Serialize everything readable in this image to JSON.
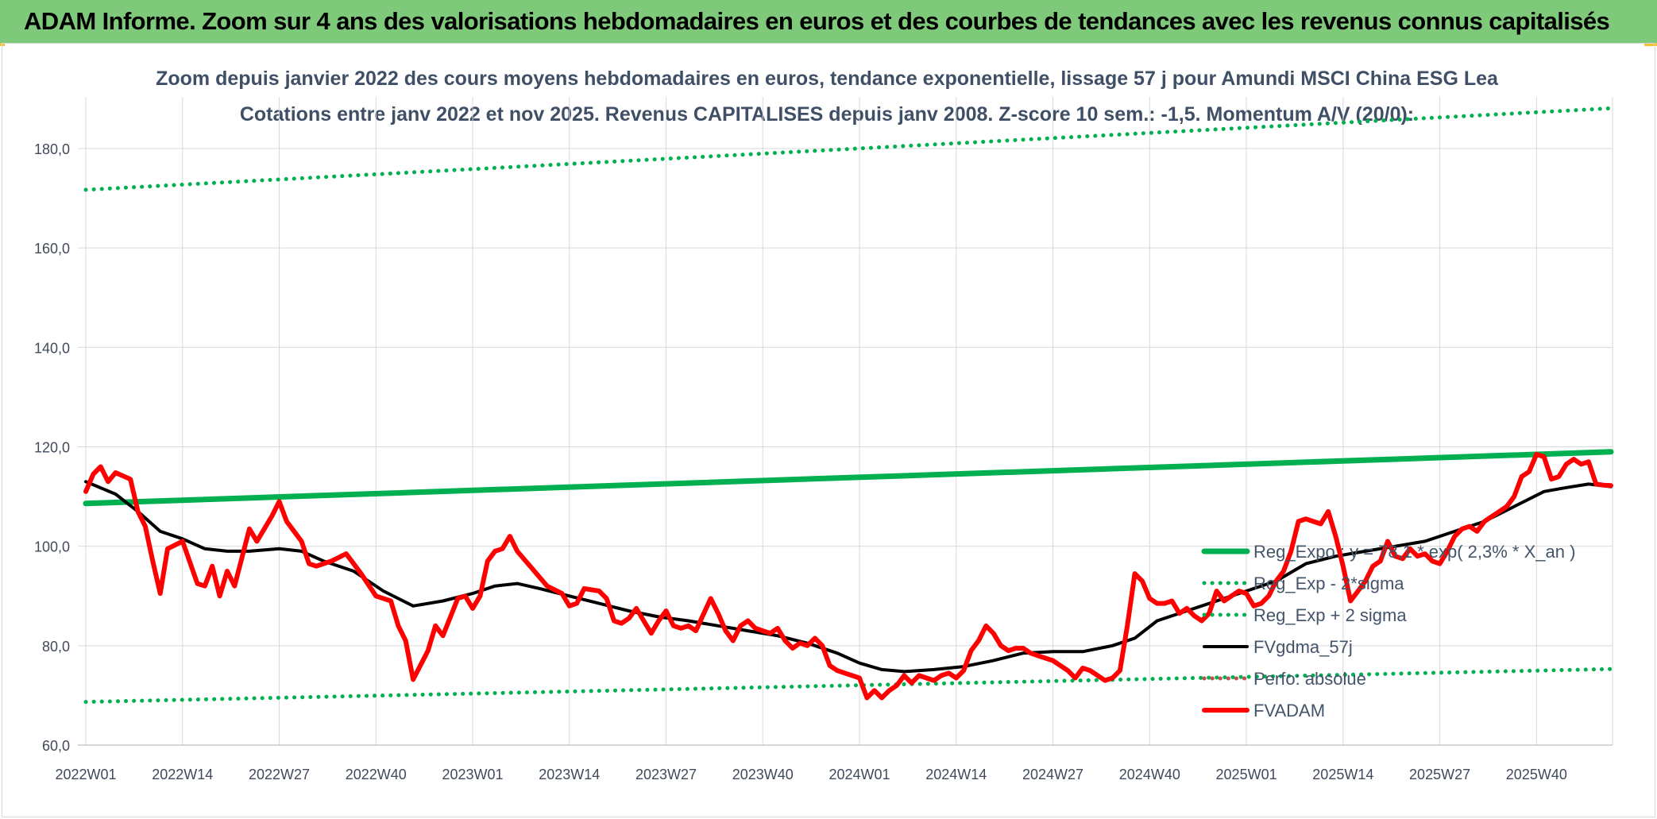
{
  "banner": {
    "title": "ADAM Informe. Zoom sur 4 ans des valorisations hebdomadaires en euros et des courbes de tendances avec les revenus connus capitalisés"
  },
  "colors": {
    "banner": "#7ec97a",
    "reg_expo": "#00b050",
    "fvgdma": "#000000",
    "fvadam": "#ff0000",
    "perfo": "#c0504d",
    "grid": "#d9d9d9"
  },
  "chart_data": {
    "type": "line",
    "title_line1": "Zoom depuis janvier 2022 des cours moyens hebdomadaires en euros, tendance exponentielle, lissage 57 j pour Amundi MSCI China ESG Lea",
    "title_line2": "Cotations entre janv 2022 et nov 2025. Revenus CAPITALISES depuis janv 2008. Z-score 10 sem.: -1,5. Momentum A/V (20/0):",
    "ylim": [
      60,
      190
    ],
    "y_ticks": [
      "60,0",
      "80,0",
      "100,0",
      "120,0",
      "140,0",
      "160,0",
      "180,0"
    ],
    "y_tick_values": [
      60,
      80,
      100,
      120,
      140,
      160,
      180
    ],
    "x_ticks": [
      "2022W01",
      "2022W14",
      "2022W27",
      "2022W40",
      "2023W01",
      "2023W14",
      "2023W27",
      "2023W40",
      "2024W01",
      "2024W14",
      "2024W27",
      "2024W40",
      "2025W01",
      "2025W14",
      "2025W27",
      "2025W40"
    ],
    "x_tick_weeks": [
      0,
      13,
      26,
      39,
      52,
      65,
      78,
      91,
      104,
      117,
      130,
      143,
      156,
      169,
      182,
      195
    ],
    "x_range": [
      0,
      205
    ],
    "grid": true,
    "legend_position": "right",
    "series": [
      {
        "name": "Reg_Expo : y = 78,1 * exp( 2,3% *  X_an )",
        "style": "solid-thick",
        "color": "#00b050",
        "points": [
          [
            0,
            108.6
          ],
          [
            205,
            119.0
          ]
        ]
      },
      {
        "name": "Reg_Exp - 2*sigma",
        "style": "dotted",
        "color": "#00b050",
        "points": [
          [
            0,
            68.7
          ],
          [
            205,
            75.3
          ]
        ]
      },
      {
        "name": "Reg_Exp + 2 sigma",
        "style": "dotted",
        "color": "#00b050",
        "points": [
          [
            0,
            171.7
          ],
          [
            205,
            188.1
          ]
        ]
      },
      {
        "name": "FVgdma_57j",
        "style": "solid",
        "color": "#000000",
        "points": [
          [
            0,
            113
          ],
          [
            4,
            110.5
          ],
          [
            7,
            107
          ],
          [
            10,
            103
          ],
          [
            13,
            101.5
          ],
          [
            16,
            99.5
          ],
          [
            19,
            99
          ],
          [
            22,
            99
          ],
          [
            26,
            99.5
          ],
          [
            29,
            99
          ],
          [
            32,
            97
          ],
          [
            36,
            95
          ],
          [
            40,
            91
          ],
          [
            44,
            88
          ],
          [
            48,
            89
          ],
          [
            52,
            90.5
          ],
          [
            55,
            92
          ],
          [
            58,
            92.5
          ],
          [
            61,
            91.5
          ],
          [
            65,
            90
          ],
          [
            69,
            88.5
          ],
          [
            73,
            87
          ],
          [
            77,
            85.8
          ],
          [
            81,
            85
          ],
          [
            85,
            84
          ],
          [
            89,
            83
          ],
          [
            93,
            82
          ],
          [
            97,
            80.5
          ],
          [
            101,
            78.5
          ],
          [
            104,
            76.5
          ],
          [
            107,
            75.2
          ],
          [
            110,
            74.8
          ],
          [
            114,
            75.2
          ],
          [
            118,
            75.8
          ],
          [
            122,
            77
          ],
          [
            126,
            78.5
          ],
          [
            130,
            78.8
          ],
          [
            134,
            78.8
          ],
          [
            138,
            80
          ],
          [
            141,
            81.5
          ],
          [
            144,
            85
          ],
          [
            148,
            87
          ],
          [
            152,
            89
          ],
          [
            156,
            91
          ],
          [
            160,
            93
          ],
          [
            164,
            96.5
          ],
          [
            168,
            98
          ],
          [
            172,
            99
          ],
          [
            176,
            100
          ],
          [
            180,
            101
          ],
          [
            184,
            103
          ],
          [
            188,
            105
          ],
          [
            192,
            108
          ],
          [
            196,
            111
          ],
          [
            199,
            111.8
          ],
          [
            202,
            112.5
          ],
          [
            205,
            112
          ]
        ]
      },
      {
        "name": "Perfo: absolue",
        "style": "dotted",
        "color": "#c0504d",
        "points": []
      },
      {
        "name": "FVADAM",
        "style": "solid-thick",
        "color": "#ff0000",
        "points": [
          [
            0,
            111
          ],
          [
            1,
            114.5
          ],
          [
            2,
            116
          ],
          [
            3,
            113
          ],
          [
            4,
            114.8
          ],
          [
            6,
            113.5
          ],
          [
            7,
            107
          ],
          [
            8,
            104
          ],
          [
            9,
            97
          ],
          [
            10,
            90.5
          ],
          [
            11,
            99.5
          ],
          [
            13,
            101
          ],
          [
            15,
            92.5
          ],
          [
            16,
            92
          ],
          [
            17,
            96
          ],
          [
            18,
            90
          ],
          [
            19,
            95
          ],
          [
            20,
            92
          ],
          [
            22,
            103.5
          ],
          [
            23,
            101
          ],
          [
            25,
            106
          ],
          [
            26,
            109
          ],
          [
            27,
            105
          ],
          [
            29,
            101
          ],
          [
            30,
            96.5
          ],
          [
            31,
            96
          ],
          [
            33,
            97
          ],
          [
            35,
            98.5
          ],
          [
            37,
            94.5
          ],
          [
            39,
            90
          ],
          [
            41,
            89
          ],
          [
            42,
            84
          ],
          [
            43,
            81
          ],
          [
            44,
            73.2
          ],
          [
            46,
            79
          ],
          [
            47,
            84
          ],
          [
            48,
            82
          ],
          [
            50,
            89.5
          ],
          [
            51,
            90
          ],
          [
            52,
            87.5
          ],
          [
            53,
            90
          ],
          [
            54,
            97
          ],
          [
            55,
            99
          ],
          [
            56,
            99.5
          ],
          [
            57,
            102
          ],
          [
            58,
            99
          ],
          [
            60,
            95.5
          ],
          [
            62,
            92
          ],
          [
            64,
            90.5
          ],
          [
            65,
            88
          ],
          [
            66,
            88.5
          ],
          [
            67,
            91.5
          ],
          [
            69,
            91
          ],
          [
            70,
            89.5
          ],
          [
            71,
            85
          ],
          [
            72,
            84.5
          ],
          [
            73,
            85.5
          ],
          [
            74,
            87.5
          ],
          [
            75,
            85
          ],
          [
            76,
            82.5
          ],
          [
            77,
            85
          ],
          [
            78,
            87
          ],
          [
            79,
            84
          ],
          [
            80,
            83.5
          ],
          [
            81,
            84
          ],
          [
            82,
            83
          ],
          [
            84,
            89.5
          ],
          [
            85,
            86.5
          ],
          [
            86,
            83
          ],
          [
            87,
            81
          ],
          [
            88,
            84
          ],
          [
            89,
            85
          ],
          [
            90,
            83.5
          ],
          [
            91,
            83
          ],
          [
            92,
            82.5
          ],
          [
            93,
            83.5
          ],
          [
            94,
            81
          ],
          [
            95,
            79.5
          ],
          [
            96,
            80.5
          ],
          [
            97,
            80
          ],
          [
            98,
            81.5
          ],
          [
            99,
            80
          ],
          [
            100,
            76
          ],
          [
            101,
            75
          ],
          [
            102,
            74.5
          ],
          [
            103,
            74
          ],
          [
            104,
            73.5
          ],
          [
            105,
            69.5
          ],
          [
            106,
            71
          ],
          [
            107,
            69.5
          ],
          [
            108,
            71
          ],
          [
            109,
            72
          ],
          [
            110,
            74
          ],
          [
            111,
            72.5
          ],
          [
            112,
            74
          ],
          [
            113,
            73.5
          ],
          [
            114,
            73
          ],
          [
            115,
            74
          ],
          [
            116,
            74.5
          ],
          [
            117,
            73.5
          ],
          [
            118,
            75
          ],
          [
            119,
            79
          ],
          [
            120,
            81
          ],
          [
            121,
            84
          ],
          [
            122,
            82.5
          ],
          [
            123,
            80
          ],
          [
            124,
            79
          ],
          [
            125,
            79.5
          ],
          [
            126,
            79.5
          ],
          [
            127,
            78.5
          ],
          [
            128,
            78
          ],
          [
            129,
            77.5
          ],
          [
            130,
            77
          ],
          [
            131,
            76
          ],
          [
            132,
            75
          ],
          [
            133,
            73.5
          ],
          [
            134,
            75.5
          ],
          [
            135,
            75
          ],
          [
            136,
            74
          ],
          [
            137,
            73
          ],
          [
            138,
            73.5
          ],
          [
            139,
            75
          ],
          [
            140,
            84
          ],
          [
            141,
            94.5
          ],
          [
            142,
            93
          ],
          [
            143,
            89.5
          ],
          [
            144,
            88.5
          ],
          [
            145,
            88.5
          ],
          [
            146,
            89
          ],
          [
            147,
            86.5
          ],
          [
            148,
            87.5
          ],
          [
            149,
            86
          ],
          [
            150,
            85
          ],
          [
            151,
            86.5
          ],
          [
            152,
            91
          ],
          [
            153,
            89
          ],
          [
            154,
            90
          ],
          [
            155,
            91
          ],
          [
            156,
            90.5
          ],
          [
            157,
            88
          ],
          [
            158,
            88.5
          ],
          [
            159,
            90
          ],
          [
            160,
            93
          ],
          [
            161,
            95
          ],
          [
            162,
            99
          ],
          [
            163,
            105
          ],
          [
            164,
            105.5
          ],
          [
            165,
            105
          ],
          [
            166,
            104.5
          ],
          [
            167,
            107
          ],
          [
            168,
            102
          ],
          [
            169,
            96
          ],
          [
            170,
            89
          ],
          [
            171,
            91
          ],
          [
            172,
            93
          ],
          [
            173,
            96
          ],
          [
            174,
            97
          ],
          [
            175,
            101
          ],
          [
            176,
            98
          ],
          [
            177,
            97.5
          ],
          [
            178,
            99.5
          ],
          [
            179,
            98
          ],
          [
            180,
            98.5
          ],
          [
            181,
            97
          ],
          [
            182,
            96.5
          ],
          [
            183,
            99
          ],
          [
            184,
            102
          ],
          [
            185,
            103.5
          ],
          [
            186,
            104
          ],
          [
            187,
            103
          ],
          [
            188,
            105
          ],
          [
            189,
            106
          ],
          [
            190,
            107
          ],
          [
            191,
            108
          ],
          [
            192,
            110
          ],
          [
            193,
            114
          ],
          [
            194,
            115
          ],
          [
            195,
            118.5
          ],
          [
            196,
            118
          ],
          [
            197,
            113.5
          ],
          [
            198,
            114
          ],
          [
            199,
            116.5
          ],
          [
            200,
            117.5
          ],
          [
            201,
            116.5
          ],
          [
            202,
            117
          ],
          [
            203,
            112.5
          ],
          [
            204,
            112.3
          ],
          [
            205,
            112.2
          ]
        ]
      }
    ]
  }
}
